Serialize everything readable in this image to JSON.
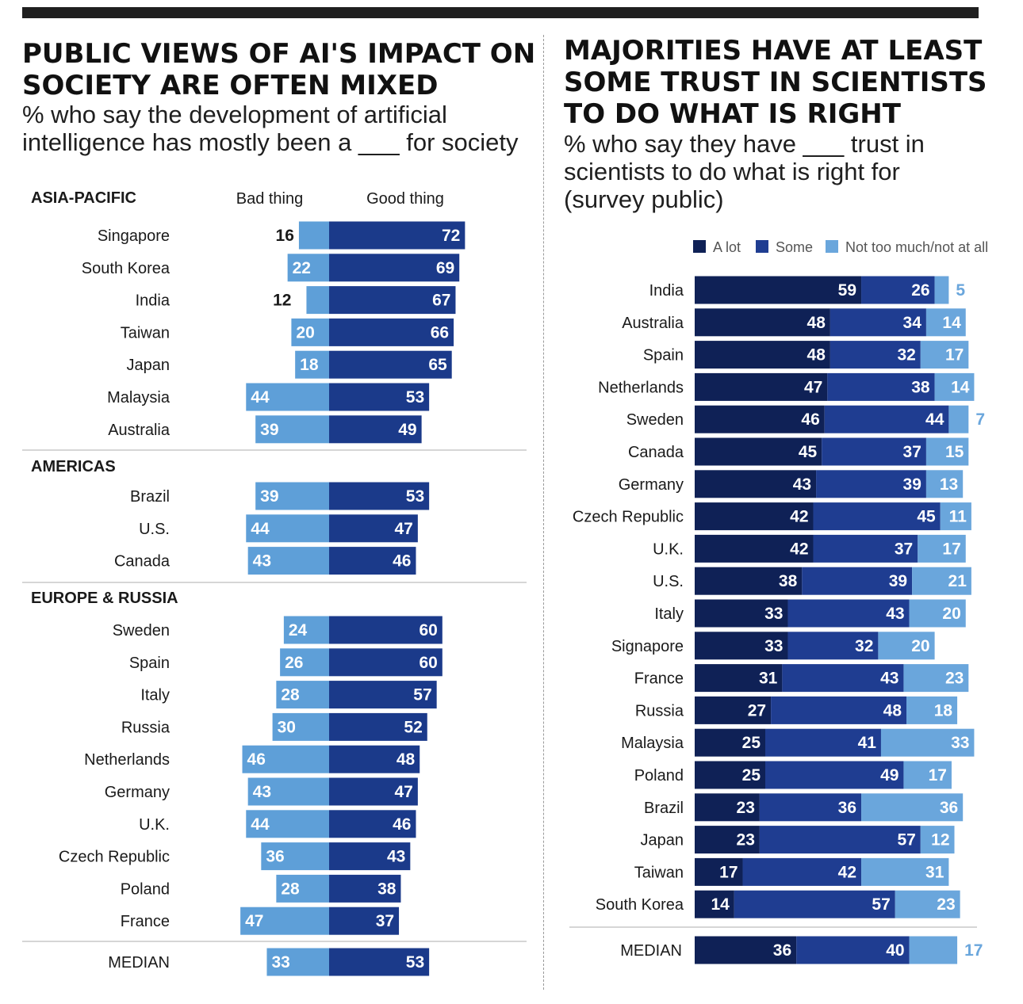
{
  "colors": {
    "bad": "#5e9fd8",
    "good": "#1b3a8a",
    "a_lot": "#0f2156",
    "some": "#1f3d91",
    "not_much": "#6aa6dc",
    "divider": "#c8c8c8",
    "text": "#1a1a1a"
  },
  "left": {
    "title_line1": "PUBLIC VIEWS OF AI'S IMPACT ON",
    "title_line2": "SOCIETY ARE OFTEN MIXED",
    "subtitle_line1": "% who say the development of artificial",
    "subtitle_line2": "intelligence has mostly been a ___ for society",
    "col_bad": "Bad thing",
    "col_good": "Good thing",
    "median_label": "MEDIAN"
  },
  "right": {
    "title_line1": "MAJORITIES HAVE AT LEAST",
    "title_line2": "SOME TRUST IN SCIENTISTS",
    "title_line3": "TO DO WHAT IS RIGHT",
    "subtitle_line1": "% who say they have ___ trust in",
    "subtitle_line2": "scientists to do what is right for",
    "subtitle_line3": "(survey public)",
    "median_label": "MEDIAN"
  },
  "chart_data": [
    {
      "type": "bar",
      "subtype": "diverging",
      "series_names": [
        "Bad thing",
        "Good thing"
      ],
      "groups": [
        {
          "name": "ASIA-PACIFIC",
          "rows": [
            {
              "country": "Singapore",
              "bad": 16,
              "good": 72
            },
            {
              "country": "South Korea",
              "bad": 22,
              "good": 69
            },
            {
              "country": "India",
              "bad": 12,
              "good": 67
            },
            {
              "country": "Taiwan",
              "bad": 20,
              "good": 66
            },
            {
              "country": "Japan",
              "bad": 18,
              "good": 65
            },
            {
              "country": "Malaysia",
              "bad": 44,
              "good": 53
            },
            {
              "country": "Australia",
              "bad": 39,
              "good": 49
            }
          ]
        },
        {
          "name": "AMERICAS",
          "rows": [
            {
              "country": "Brazil",
              "bad": 39,
              "good": 53
            },
            {
              "country": "U.S.",
              "bad": 44,
              "good": 47
            },
            {
              "country": "Canada",
              "bad": 43,
              "good": 46
            }
          ]
        },
        {
          "name": "EUROPE & RUSSIA",
          "rows": [
            {
              "country": "Sweden",
              "bad": 24,
              "good": 60
            },
            {
              "country": "Spain",
              "bad": 26,
              "good": 60
            },
            {
              "country": "Italy",
              "bad": 28,
              "good": 57
            },
            {
              "country": "Russia",
              "bad": 30,
              "good": 52
            },
            {
              "country": "Netherlands",
              "bad": 46,
              "good": 48
            },
            {
              "country": "Germany",
              "bad": 43,
              "good": 47
            },
            {
              "country": "U.K.",
              "bad": 44,
              "good": 46
            },
            {
              "country": "Czech Republic",
              "bad": 36,
              "good": 43
            },
            {
              "country": "Poland",
              "bad": 28,
              "good": 38
            },
            {
              "country": "France",
              "bad": 47,
              "good": 37
            }
          ]
        }
      ],
      "median": {
        "country": "MEDIAN",
        "bad": 33,
        "good": 53
      }
    },
    {
      "type": "bar",
      "subtype": "stacked-horizontal",
      "legend": [
        "A lot",
        "Some",
        "Not too much/not at all"
      ],
      "legend_position": "top-right",
      "rows": [
        {
          "country": "India",
          "a_lot": 59,
          "some": 26,
          "not_much": 5
        },
        {
          "country": "Australia",
          "a_lot": 48,
          "some": 34,
          "not_much": 14
        },
        {
          "country": "Spain",
          "a_lot": 48,
          "some": 32,
          "not_much": 17
        },
        {
          "country": "Netherlands",
          "a_lot": 47,
          "some": 38,
          "not_much": 14
        },
        {
          "country": "Sweden",
          "a_lot": 46,
          "some": 44,
          "not_much": 7
        },
        {
          "country": "Canada",
          "a_lot": 45,
          "some": 37,
          "not_much": 15
        },
        {
          "country": "Germany",
          "a_lot": 43,
          "some": 39,
          "not_much": 13
        },
        {
          "country": "Czech Republic",
          "a_lot": 42,
          "some": 45,
          "not_much": 11
        },
        {
          "country": "U.K.",
          "a_lot": 42,
          "some": 37,
          "not_much": 17
        },
        {
          "country": "U.S.",
          "a_lot": 38,
          "some": 39,
          "not_much": 21
        },
        {
          "country": "Italy",
          "a_lot": 33,
          "some": 43,
          "not_much": 20
        },
        {
          "country": "Signapore",
          "a_lot": 33,
          "some": 32,
          "not_much": 20
        },
        {
          "country": "France",
          "a_lot": 31,
          "some": 43,
          "not_much": 23
        },
        {
          "country": "Russia",
          "a_lot": 27,
          "some": 48,
          "not_much": 18
        },
        {
          "country": "Malaysia",
          "a_lot": 25,
          "some": 41,
          "not_much": 33
        },
        {
          "country": "Poland",
          "a_lot": 25,
          "some": 49,
          "not_much": 17
        },
        {
          "country": "Brazil",
          "a_lot": 23,
          "some": 36,
          "not_much": 36
        },
        {
          "country": "Japan",
          "a_lot": 23,
          "some": 57,
          "not_much": 12
        },
        {
          "country": "Taiwan",
          "a_lot": 17,
          "some": 42,
          "not_much": 31
        },
        {
          "country": "South Korea",
          "a_lot": 14,
          "some": 57,
          "not_much": 23
        }
      ],
      "median": {
        "country": "MEDIAN",
        "a_lot": 36,
        "some": 40,
        "not_much": 17
      }
    }
  ]
}
